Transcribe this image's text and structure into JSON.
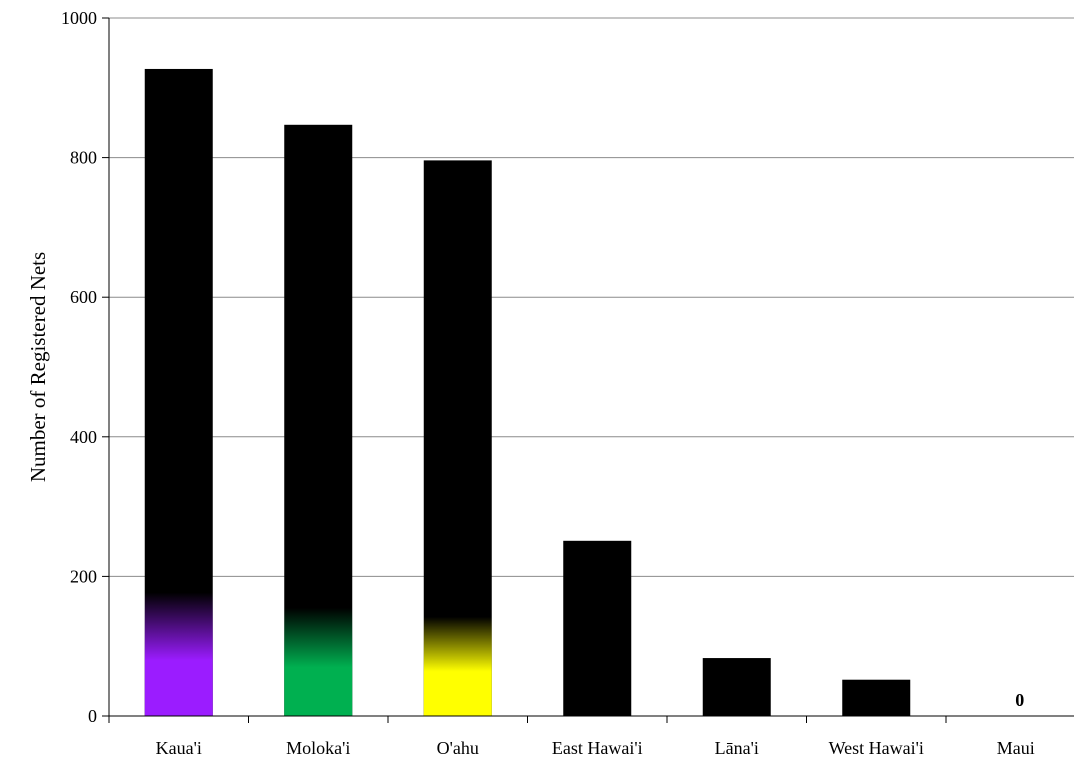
{
  "chart_data": {
    "type": "bar",
    "title": "",
    "xlabel": "",
    "ylabel": "Number of Registered Nets",
    "ylim": [
      0,
      1000
    ],
    "yticks": [
      0,
      200,
      400,
      600,
      800,
      1000
    ],
    "grid": true,
    "legend": "none",
    "categories": [
      "Kaua'i",
      "Moloka'i",
      "O'ahu",
      "East Hawai'i",
      "Lāna'i",
      "West Hawai'i",
      "Maui"
    ],
    "values": [
      927,
      847,
      796,
      251,
      83,
      52,
      0
    ],
    "highlight_values": [
      177,
      155,
      142,
      0,
      0,
      0,
      0
    ],
    "bar_color": "#000000",
    "highlight_colors": [
      "#9b1cff",
      "#00b050",
      "#ffff00",
      null,
      null,
      null,
      null
    ],
    "data_labels": [
      null,
      null,
      null,
      null,
      null,
      null,
      "0"
    ]
  }
}
